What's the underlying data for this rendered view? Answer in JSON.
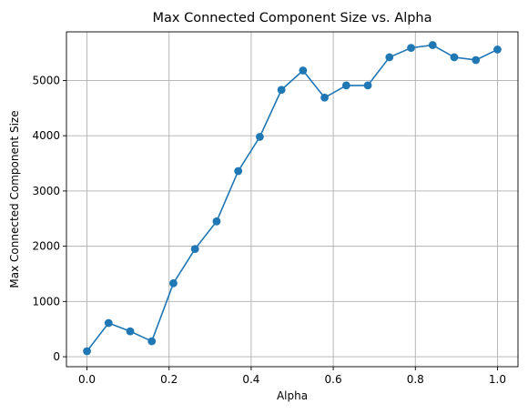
{
  "chart_data": {
    "type": "line",
    "title": "Max Connected Component Size vs. Alpha",
    "xlabel": "Alpha",
    "ylabel": "Max Connected Component Size",
    "xlim": [
      -0.05,
      1.05
    ],
    "ylim": [
      -180,
      5880
    ],
    "xticks": [
      0.0,
      0.2,
      0.4,
      0.6,
      0.8,
      1.0
    ],
    "xtick_labels": [
      "0.0",
      "0.2",
      "0.4",
      "0.6",
      "0.8",
      "1.0"
    ],
    "yticks": [
      0,
      1000,
      2000,
      3000,
      4000,
      5000
    ],
    "ytick_labels": [
      "0",
      "1000",
      "2000",
      "3000",
      "4000",
      "5000"
    ],
    "grid": true,
    "legend": "none",
    "color": "#1f77b4",
    "markers": "circle",
    "series": [
      {
        "x": [
          0.0,
          0.0526,
          0.1053,
          0.1579,
          0.2105,
          0.2632,
          0.3158,
          0.3684,
          0.4211,
          0.4737,
          0.5263,
          0.5789,
          0.6316,
          0.6842,
          0.7368,
          0.7895,
          0.8421,
          0.8947,
          0.9474,
          1.0
        ],
        "y": [
          100,
          610,
          460,
          280,
          1330,
          1950,
          2450,
          3360,
          3980,
          4830,
          5180,
          4690,
          4910,
          4910,
          5420,
          5590,
          5640,
          5420,
          5370,
          5560
        ]
      }
    ]
  }
}
